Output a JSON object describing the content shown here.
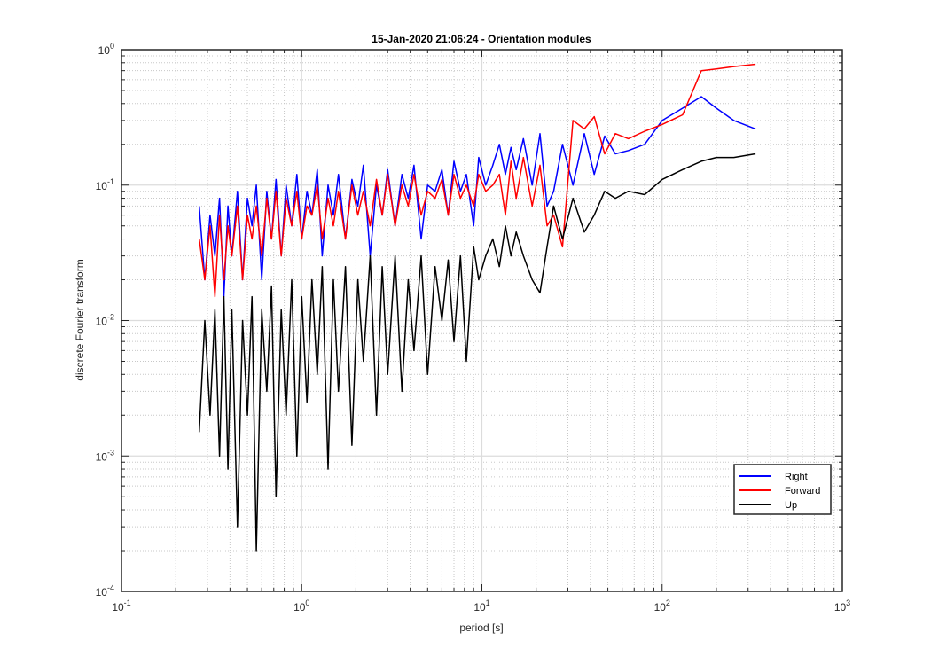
{
  "chart_data": {
    "type": "line",
    "title": "15-Jan-2020 21:06:24 - Orientation modules",
    "xlabel": "period [s]",
    "ylabel": "discrete Fourier transform",
    "xscale": "log",
    "yscale": "log",
    "xlim": [
      0.1,
      1000
    ],
    "ylim": [
      0.0001,
      1
    ],
    "grid": true,
    "minor_grid": true,
    "legend_position": "bottom-right",
    "x_ticks": [
      {
        "base": "10",
        "exp": "-1",
        "value": 0.1
      },
      {
        "base": "10",
        "exp": "0",
        "value": 1
      },
      {
        "base": "10",
        "exp": "1",
        "value": 10
      },
      {
        "base": "10",
        "exp": "2",
        "value": 100
      },
      {
        "base": "10",
        "exp": "3",
        "value": 1000
      }
    ],
    "y_ticks": [
      {
        "base": "10",
        "exp": "-4",
        "value": 0.0001
      },
      {
        "base": "10",
        "exp": "-3",
        "value": 0.001
      },
      {
        "base": "10",
        "exp": "-2",
        "value": 0.01
      },
      {
        "base": "10",
        "exp": "-1",
        "value": 0.1
      },
      {
        "base": "10",
        "exp": "0",
        "value": 1
      }
    ],
    "series": [
      {
        "name": "Right",
        "color": "#0000ff",
        "x": [
          0.27,
          0.29,
          0.31,
          0.33,
          0.35,
          0.37,
          0.39,
          0.41,
          0.44,
          0.47,
          0.5,
          0.53,
          0.56,
          0.6,
          0.64,
          0.68,
          0.72,
          0.77,
          0.82,
          0.88,
          0.94,
          1.0,
          1.07,
          1.14,
          1.22,
          1.3,
          1.4,
          1.5,
          1.6,
          1.75,
          1.9,
          2.05,
          2.2,
          2.4,
          2.6,
          2.8,
          3.0,
          3.3,
          3.6,
          3.9,
          4.2,
          4.6,
          5.0,
          5.5,
          6.0,
          6.5,
          7.0,
          7.6,
          8.2,
          9.0,
          9.6,
          10.5,
          11.5,
          12.5,
          13.5,
          14.5,
          15.5,
          17,
          19,
          21,
          23,
          25,
          28,
          32,
          37,
          42,
          48,
          55,
          65,
          80,
          100,
          130,
          165,
          200,
          250,
          330
        ],
        "y": [
          0.07,
          0.02,
          0.06,
          0.03,
          0.08,
          0.015,
          0.07,
          0.03,
          0.09,
          0.02,
          0.08,
          0.05,
          0.1,
          0.02,
          0.09,
          0.04,
          0.11,
          0.03,
          0.1,
          0.05,
          0.12,
          0.04,
          0.09,
          0.06,
          0.13,
          0.03,
          0.1,
          0.06,
          0.12,
          0.04,
          0.11,
          0.07,
          0.14,
          0.03,
          0.1,
          0.06,
          0.13,
          0.05,
          0.12,
          0.08,
          0.14,
          0.04,
          0.1,
          0.09,
          0.13,
          0.06,
          0.15,
          0.09,
          0.12,
          0.05,
          0.16,
          0.1,
          0.14,
          0.2,
          0.12,
          0.19,
          0.13,
          0.22,
          0.1,
          0.24,
          0.07,
          0.09,
          0.2,
          0.1,
          0.24,
          0.12,
          0.23,
          0.17,
          0.18,
          0.2,
          0.3,
          0.37,
          0.45,
          0.37,
          0.3,
          0.26
        ]
      },
      {
        "name": "Forward",
        "color": "#ff0000",
        "x": [
          0.27,
          0.29,
          0.31,
          0.33,
          0.35,
          0.37,
          0.39,
          0.41,
          0.44,
          0.47,
          0.5,
          0.53,
          0.56,
          0.6,
          0.64,
          0.68,
          0.72,
          0.77,
          0.82,
          0.88,
          0.94,
          1.0,
          1.07,
          1.14,
          1.22,
          1.3,
          1.4,
          1.5,
          1.6,
          1.75,
          1.9,
          2.05,
          2.2,
          2.4,
          2.6,
          2.8,
          3.0,
          3.3,
          3.6,
          3.9,
          4.2,
          4.6,
          5.0,
          5.5,
          6.0,
          6.5,
          7.0,
          7.6,
          8.2,
          9.0,
          9.6,
          10.5,
          11.5,
          12.5,
          13.5,
          14.5,
          15.5,
          17,
          19,
          21,
          23,
          25,
          28,
          32,
          37,
          42,
          48,
          55,
          65,
          80,
          100,
          130,
          165,
          200,
          250,
          330
        ],
        "y": [
          0.04,
          0.02,
          0.05,
          0.015,
          0.06,
          0.02,
          0.05,
          0.03,
          0.07,
          0.02,
          0.06,
          0.04,
          0.07,
          0.03,
          0.08,
          0.04,
          0.09,
          0.03,
          0.08,
          0.05,
          0.09,
          0.04,
          0.07,
          0.06,
          0.1,
          0.04,
          0.08,
          0.05,
          0.09,
          0.04,
          0.1,
          0.06,
          0.09,
          0.05,
          0.11,
          0.06,
          0.12,
          0.05,
          0.1,
          0.07,
          0.12,
          0.06,
          0.09,
          0.08,
          0.11,
          0.06,
          0.12,
          0.08,
          0.1,
          0.07,
          0.12,
          0.09,
          0.1,
          0.12,
          0.06,
          0.15,
          0.08,
          0.16,
          0.07,
          0.14,
          0.05,
          0.06,
          0.035,
          0.3,
          0.26,
          0.32,
          0.17,
          0.24,
          0.22,
          0.25,
          0.28,
          0.33,
          0.7,
          0.72,
          0.75,
          0.78
        ]
      },
      {
        "name": "Up",
        "color": "#000000",
        "x": [
          0.27,
          0.29,
          0.31,
          0.33,
          0.35,
          0.37,
          0.39,
          0.41,
          0.44,
          0.47,
          0.5,
          0.53,
          0.56,
          0.6,
          0.64,
          0.68,
          0.72,
          0.77,
          0.82,
          0.88,
          0.94,
          1.0,
          1.07,
          1.14,
          1.22,
          1.3,
          1.4,
          1.5,
          1.6,
          1.75,
          1.9,
          2.05,
          2.2,
          2.4,
          2.6,
          2.8,
          3.0,
          3.3,
          3.6,
          3.9,
          4.2,
          4.6,
          5.0,
          5.5,
          6.0,
          6.5,
          7.0,
          7.6,
          8.2,
          9.0,
          9.6,
          10.5,
          11.5,
          12.5,
          13.5,
          14.5,
          15.5,
          17,
          19,
          21,
          23,
          25,
          28,
          32,
          37,
          42,
          48,
          55,
          65,
          80,
          100,
          130,
          165,
          200,
          250,
          330
        ],
        "y": [
          0.0015,
          0.01,
          0.002,
          0.012,
          0.001,
          0.015,
          0.0008,
          0.012,
          0.0003,
          0.01,
          0.002,
          0.015,
          0.0002,
          0.012,
          0.003,
          0.018,
          0.0005,
          0.012,
          0.002,
          0.02,
          0.001,
          0.015,
          0.0025,
          0.02,
          0.004,
          0.025,
          0.0008,
          0.02,
          0.003,
          0.025,
          0.0012,
          0.02,
          0.005,
          0.03,
          0.002,
          0.025,
          0.004,
          0.03,
          0.003,
          0.02,
          0.006,
          0.03,
          0.004,
          0.025,
          0.01,
          0.028,
          0.007,
          0.03,
          0.005,
          0.035,
          0.02,
          0.03,
          0.04,
          0.025,
          0.05,
          0.03,
          0.045,
          0.03,
          0.02,
          0.016,
          0.035,
          0.07,
          0.04,
          0.08,
          0.045,
          0.06,
          0.09,
          0.08,
          0.09,
          0.085,
          0.11,
          0.13,
          0.15,
          0.16,
          0.16,
          0.17
        ]
      }
    ]
  }
}
